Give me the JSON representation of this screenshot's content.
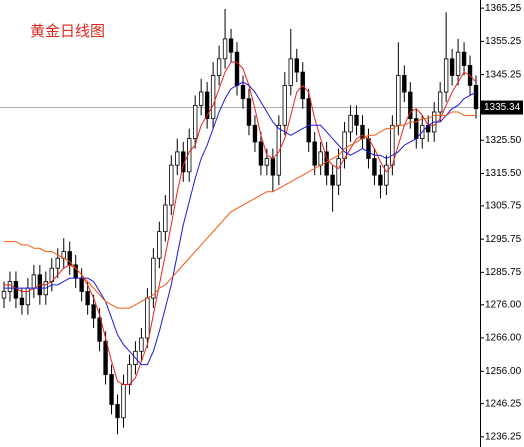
{
  "chart_data": {
    "type": "candlestick",
    "title": "黄金日线图",
    "open": [
      1278,
      1280,
      1283,
      1278,
      1276,
      1281,
      1285,
      1279,
      1283,
      1287,
      1290,
      1292,
      1288,
      1284,
      1280,
      1276,
      1272,
      1265,
      1255,
      1246,
      1242,
      1252,
      1258,
      1262,
      1266,
      1278,
      1290,
      1298,
      1306,
      1318,
      1322,
      1316,
      1326,
      1336,
      1340,
      1332,
      1345,
      1350,
      1356,
      1352,
      1342,
      1338,
      1330,
      1325,
      1318,
      1320,
      1315,
      1330,
      1342,
      1350,
      1346,
      1338,
      1325,
      1318,
      1322,
      1315,
      1312,
      1320,
      1328,
      1333,
      1330,
      1326,
      1320,
      1315,
      1312,
      1318,
      1330,
      1345,
      1340,
      1332,
      1326,
      1330,
      1328,
      1334,
      1340,
      1350,
      1345,
      1352,
      1348,
      1342
    ],
    "high": [
      1283,
      1286,
      1286,
      1281,
      1284,
      1288,
      1288,
      1286,
      1290,
      1293,
      1296,
      1295,
      1291,
      1287,
      1283,
      1279,
      1275,
      1268,
      1258,
      1249,
      1255,
      1261,
      1265,
      1269,
      1281,
      1293,
      1301,
      1309,
      1321,
      1326,
      1325,
      1329,
      1339,
      1344,
      1343,
      1349,
      1354,
      1365,
      1359,
      1355,
      1345,
      1341,
      1333,
      1328,
      1323,
      1323,
      1333,
      1346,
      1359,
      1353,
      1349,
      1341,
      1328,
      1325,
      1325,
      1318,
      1323,
      1331,
      1336,
      1336,
      1333,
      1329,
      1323,
      1318,
      1321,
      1333,
      1355,
      1348,
      1343,
      1335,
      1333,
      1333,
      1337,
      1343,
      1364,
      1353,
      1356,
      1355,
      1351,
      1345
    ],
    "low": [
      1275,
      1277,
      1275,
      1273,
      1273,
      1278,
      1276,
      1276,
      1280,
      1284,
      1287,
      1285,
      1281,
      1277,
      1273,
      1269,
      1262,
      1252,
      1243,
      1237,
      1239,
      1249,
      1255,
      1259,
      1263,
      1275,
      1287,
      1295,
      1303,
      1315,
      1313,
      1313,
      1323,
      1333,
      1329,
      1329,
      1342,
      1347,
      1349,
      1339,
      1335,
      1327,
      1322,
      1315,
      1315,
      1310,
      1312,
      1327,
      1339,
      1343,
      1335,
      1322,
      1315,
      1315,
      1312,
      1304,
      1309,
      1317,
      1325,
      1327,
      1323,
      1317,
      1312,
      1308,
      1309,
      1315,
      1327,
      1337,
      1329,
      1323,
      1323,
      1325,
      1325,
      1331,
      1337,
      1342,
      1342,
      1345,
      1339,
      1332
    ],
    "close": [
      1280,
      1283,
      1278,
      1276,
      1281,
      1285,
      1279,
      1283,
      1287,
      1290,
      1292,
      1288,
      1284,
      1280,
      1276,
      1272,
      1265,
      1255,
      1246,
      1242,
      1252,
      1258,
      1262,
      1266,
      1278,
      1290,
      1298,
      1306,
      1318,
      1322,
      1316,
      1326,
      1336,
      1340,
      1332,
      1345,
      1350,
      1356,
      1352,
      1342,
      1338,
      1330,
      1325,
      1318,
      1320,
      1315,
      1330,
      1342,
      1350,
      1346,
      1338,
      1325,
      1318,
      1322,
      1315,
      1312,
      1320,
      1328,
      1333,
      1330,
      1326,
      1320,
      1315,
      1312,
      1318,
      1330,
      1345,
      1340,
      1332,
      1326,
      1330,
      1328,
      1334,
      1340,
      1350,
      1345,
      1352,
      1348,
      1342,
      1335
    ],
    "lines": [
      {
        "color": "#e8231c",
        "values": [
          1282,
          1282,
          1281,
          1280,
          1280,
          1281,
          1282,
          1282,
          1283,
          1285,
          1287,
          1288,
          1287,
          1285,
          1282,
          1278,
          1273,
          1266,
          1259,
          1253,
          1252,
          1252,
          1254,
          1259,
          1264,
          1273,
          1282,
          1291,
          1300,
          1310,
          1318,
          1322,
          1324,
          1330,
          1333,
          1336,
          1341,
          1346,
          1349,
          1349,
          1347,
          1342,
          1335,
          1327,
          1321,
          1320,
          1322,
          1326,
          1333,
          1340,
          1342,
          1340,
          1332,
          1326,
          1320,
          1318,
          1317,
          1320,
          1323,
          1326,
          1327,
          1326,
          1323,
          1319,
          1316,
          1318,
          1324,
          1330,
          1334,
          1335,
          1333,
          1330,
          1330,
          1332,
          1336,
          1340,
          1343,
          1346,
          1345,
          1343
        ]
      },
      {
        "color": "#1a1adc",
        "values": [
          1281,
          1281,
          1281,
          1281,
          1281,
          1281,
          1281,
          1281,
          1282,
          1282,
          1283,
          1284,
          1284,
          1284,
          1284,
          1283,
          1280,
          1277,
          1272,
          1267,
          1264,
          1262,
          1260,
          1258,
          1258,
          1262,
          1268,
          1275,
          1282,
          1291,
          1300,
          1307,
          1314,
          1320,
          1324,
          1329,
          1334,
          1338,
          1341,
          1342,
          1343,
          1342,
          1340,
          1337,
          1334,
          1331,
          1329,
          1328,
          1327,
          1328,
          1329,
          1330,
          1330,
          1330,
          1328,
          1326,
          1324,
          1322,
          1321,
          1322,
          1323,
          1322,
          1321,
          1321,
          1320,
          1321,
          1322,
          1324,
          1325,
          1326,
          1328,
          1330,
          1331,
          1331,
          1333,
          1335,
          1336,
          1338,
          1339,
          1340
        ]
      },
      {
        "color": "#f05a14",
        "values": [
          1295,
          1295,
          1295,
          1294,
          1294,
          1293,
          1293,
          1292,
          1292,
          1291,
          1290,
          1289,
          1287,
          1285,
          1283,
          1281,
          1279,
          1277,
          1276,
          1275,
          1275,
          1275,
          1276,
          1277,
          1278,
          1279,
          1281,
          1282,
          1284,
          1286,
          1288,
          1290,
          1292,
          1294,
          1296,
          1298,
          1300,
          1302,
          1304,
          1305,
          1306,
          1307,
          1308,
          1309,
          1310,
          1310,
          1311,
          1312,
          1313,
          1314,
          1315,
          1316,
          1317,
          1318,
          1319,
          1320,
          1321,
          1323,
          1324,
          1325,
          1326,
          1327,
          1327,
          1328,
          1329,
          1329,
          1330,
          1330,
          1331,
          1331,
          1332,
          1332,
          1333,
          1333,
          1333,
          1334,
          1334,
          1333,
          1333,
          1333
        ]
      }
    ],
    "last_price": 1335.34,
    "ylim": [
      1233.2,
      1367.7
    ],
    "yticks": [
      1365.25,
      1355.25,
      1345.25,
      {
        "value": 1325.5,
        "label": "1325.50"
      },
      {
        "value": 1315.5,
        "label": "1315.50"
      },
      1305.75,
      1295.75,
      1285.75,
      {
        "value": 1276,
        "label": "1276.00"
      },
      {
        "value": 1266,
        "label": "1266.00"
      },
      {
        "value": 1256,
        "label": "1256.00"
      },
      1246.25,
      1236.25
    ]
  }
}
